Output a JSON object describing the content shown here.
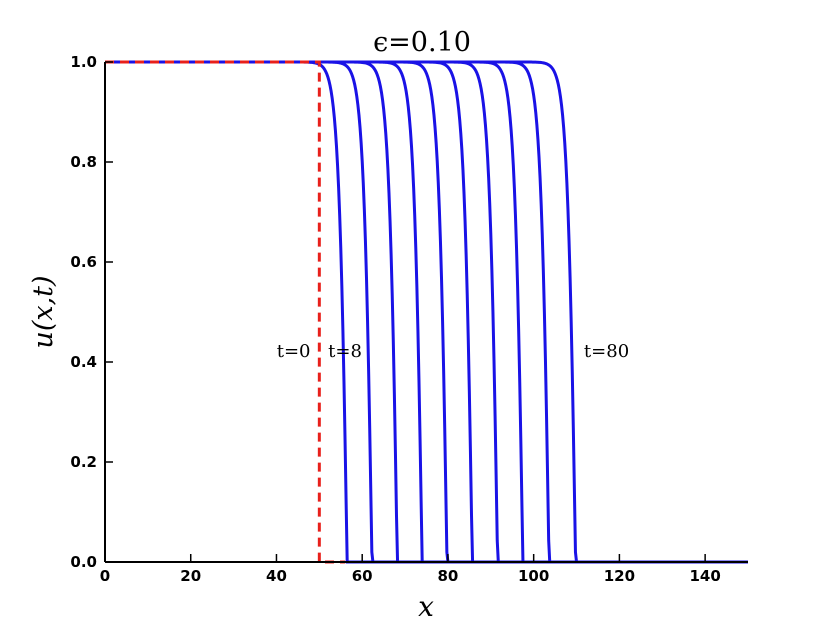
{
  "chart_data": {
    "type": "line",
    "title": "ϵ=0.10",
    "xlabel": "x",
    "ylabel": "u(x,t)",
    "xlim": [
      0,
      150
    ],
    "ylim": [
      0.0,
      1.0
    ],
    "xticks": [
      "0",
      "20",
      "40",
      "60",
      "80",
      "100",
      "120",
      "140"
    ],
    "yticks": [
      "0.0",
      "0.2",
      "0.4",
      "0.6",
      "0.8",
      "1.0"
    ],
    "grid": false,
    "initial_condition": {
      "style": "dashed",
      "color": "#e8201b",
      "step_x": 50
    },
    "series_color": "#1a12e6",
    "front_positions": [
      56.5,
      62.3,
      68.2,
      74.0,
      79.8,
      85.7,
      91.6,
      97.5,
      103.6,
      109.8
    ],
    "annotations": [
      {
        "text": "t=0",
        "x": 44,
        "y": 0.41
      },
      {
        "text": "t=8",
        "x": 56,
        "y": 0.41
      },
      {
        "text": "t=80",
        "x": 117,
        "y": 0.41
      }
    ]
  }
}
